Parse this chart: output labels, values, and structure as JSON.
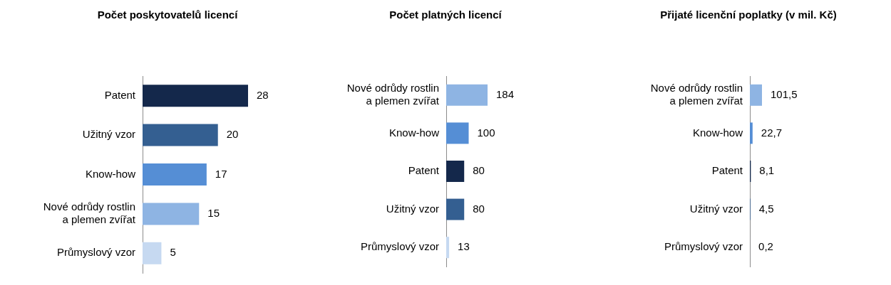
{
  "chart_data": [
    {
      "type": "bar",
      "orientation": "horizontal",
      "title": "Počet poskytovatelů licencí",
      "categories": [
        "Patent",
        "Užitný vzor",
        "Know-how",
        "Nové odrůdy rostlin\na plemen zvířat",
        "Průmyslový vzor"
      ],
      "values": [
        28,
        20,
        17,
        15,
        5
      ],
      "colors": [
        "#14284b",
        "#345f91",
        "#558ed5",
        "#8eb4e3",
        "#c6d9f1"
      ],
      "data_labels": true,
      "grid": false,
      "legend": false
    },
    {
      "type": "bar",
      "orientation": "horizontal",
      "title": "Počet platných licencí",
      "categories": [
        "Nové odrůdy rostlin\na plemen zvířat",
        "Know-how",
        "Patent",
        "Užitný vzor",
        "Průmyslový vzor"
      ],
      "values": [
        184,
        100,
        80,
        80,
        13
      ],
      "colors": [
        "#8eb4e3",
        "#558ed5",
        "#14284b",
        "#345f91",
        "#c6d9f1"
      ],
      "data_labels": true,
      "grid": false,
      "legend": false
    },
    {
      "type": "bar",
      "orientation": "horizontal",
      "title": "Přijaté licenční poplatky (v mil. Kč)",
      "categories": [
        "Nové odrůdy rostlin\na plemen zvířat",
        "Know-how",
        "Patent",
        "Užitný vzor",
        "Průmyslový vzor"
      ],
      "values": [
        101.5,
        22.7,
        8.1,
        4.5,
        0.2
      ],
      "value_labels": [
        "101,5",
        "22,7",
        "8,1",
        "4,5",
        "0,2"
      ],
      "colors": [
        "#8eb4e3",
        "#558ed5",
        "#14284b",
        "#345f91",
        "#c6d9f1"
      ],
      "grid": false,
      "legend": false
    }
  ]
}
